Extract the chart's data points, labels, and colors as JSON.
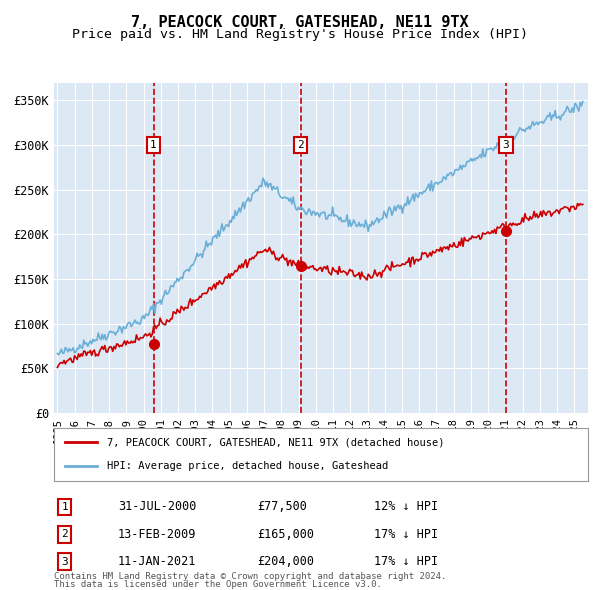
{
  "title": "7, PEACOCK COURT, GATESHEAD, NE11 9TX",
  "subtitle": "Price paid vs. HM Land Registry's House Price Index (HPI)",
  "xlabel": "",
  "ylabel": "",
  "ylim": [
    0,
    370000
  ],
  "yticks": [
    0,
    50000,
    100000,
    150000,
    200000,
    250000,
    300000,
    350000
  ],
  "ytick_labels": [
    "£0",
    "£50K",
    "£100K",
    "£150K",
    "£200K",
    "£250K",
    "£300K",
    "£350K"
  ],
  "background_color": "#dce9f5",
  "plot_bg_color": "#dce9f5",
  "grid_color": "#ffffff",
  "hpi_line_color": "#6baed6",
  "price_line_color": "#cc0000",
  "sale_marker_color": "#cc0000",
  "vline_color": "#cc0000",
  "annotation_border_color": "#cc0000",
  "sales": [
    {
      "date_num": 2000.58,
      "price": 77500,
      "label": "1",
      "date_str": "31-JUL-2000",
      "pct": "12% ↓ HPI"
    },
    {
      "date_num": 2009.12,
      "price": 165000,
      "label": "2",
      "date_str": "13-FEB-2009",
      "pct": "17% ↓ HPI"
    },
    {
      "date_num": 2021.03,
      "price": 204000,
      "label": "3",
      "date_str": "11-JAN-2021",
      "pct": "17% ↓ HPI"
    }
  ],
  "legend_entry1": "7, PEACOCK COURT, GATESHEAD, NE11 9TX (detached house)",
  "legend_entry2": "HPI: Average price, detached house, Gateshead",
  "footer1": "Contains HM Land Registry data © Crown copyright and database right 2024.",
  "footer2": "This data is licensed under the Open Government Licence v3.0.",
  "title_fontsize": 11,
  "subtitle_fontsize": 9.5,
  "tick_fontsize": 8.5
}
